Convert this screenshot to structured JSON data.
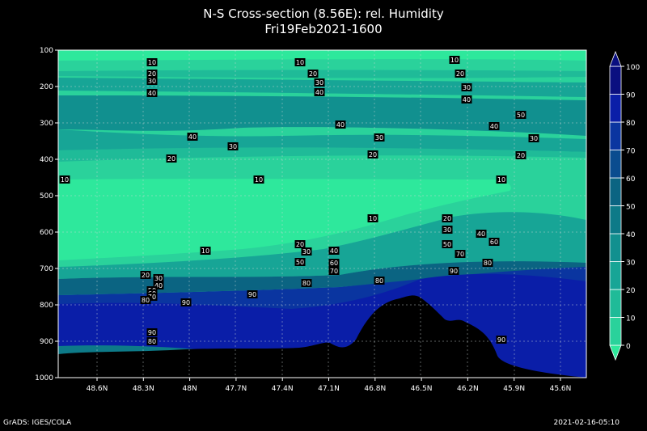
{
  "chart_data": {
    "type": "heatmap",
    "title": "N-S Cross-section (8.56E): rel. Humidity",
    "subtitle": "Fri19Feb2021-1600",
    "y_ticks": [
      "100",
      "200",
      "300",
      "400",
      "500",
      "600",
      "700",
      "800",
      "900",
      "1000"
    ],
    "x_ticks": [
      "48.6N",
      "48.3N",
      "48N",
      "47.7N",
      "47.4N",
      "47.1N",
      "46.8N",
      "46.5N",
      "46.2N",
      "45.9N",
      "45.6N"
    ],
    "colorbar": {
      "levels": [
        "0",
        "10",
        "20",
        "30",
        "40",
        "50",
        "60",
        "70",
        "80",
        "90",
        "100"
      ],
      "colors": [
        "#2ee89c",
        "#2ad29b",
        "#1fbb98",
        "#17a596",
        "#11908f",
        "#0d7a88",
        "#0b6482",
        "#0a4c8f",
        "#0a35a0",
        "#0a1ea8",
        "#0a0f80"
      ]
    },
    "contour_labels": [
      {
        "text": "10",
        "x": 188,
        "y": 77
      },
      {
        "text": "10",
        "x": 371,
        "y": 77
      },
      {
        "text": "10",
        "x": 562,
        "y": 74
      },
      {
        "text": "20",
        "x": 188,
        "y": 91
      },
      {
        "text": "20",
        "x": 387,
        "y": 91
      },
      {
        "text": "20",
        "x": 569,
        "y": 91
      },
      {
        "text": "30",
        "x": 188,
        "y": 100
      },
      {
        "text": "30",
        "x": 395,
        "y": 102
      },
      {
        "text": "30",
        "x": 577,
        "y": 108
      },
      {
        "text": "40",
        "x": 188,
        "y": 115
      },
      {
        "text": "40",
        "x": 395,
        "y": 114
      },
      {
        "text": "40",
        "x": 577,
        "y": 123
      },
      {
        "text": "50",
        "x": 644,
        "y": 142
      },
      {
        "text": "40",
        "x": 421,
        "y": 154
      },
      {
        "text": "40",
        "x": 611,
        "y": 156
      },
      {
        "text": "40",
        "x": 238,
        "y": 169
      },
      {
        "text": "30",
        "x": 469,
        "y": 170
      },
      {
        "text": "30",
        "x": 660,
        "y": 171
      },
      {
        "text": "30",
        "x": 288,
        "y": 181
      },
      {
        "text": "20",
        "x": 461,
        "y": 191
      },
      {
        "text": "20",
        "x": 644,
        "y": 192
      },
      {
        "text": "20",
        "x": 212,
        "y": 196
      },
      {
        "text": "10",
        "x": 80,
        "y": 222
      },
      {
        "text": "10",
        "x": 320,
        "y": 222
      },
      {
        "text": "10",
        "x": 620,
        "y": 222
      },
      {
        "text": "10",
        "x": 461,
        "y": 270
      },
      {
        "text": "20",
        "x": 553,
        "y": 270
      },
      {
        "text": "30",
        "x": 553,
        "y": 284
      },
      {
        "text": "40",
        "x": 595,
        "y": 289
      },
      {
        "text": "50",
        "x": 553,
        "y": 302
      },
      {
        "text": "60",
        "x": 611,
        "y": 299
      },
      {
        "text": "70",
        "x": 569,
        "y": 314
      },
      {
        "text": "80",
        "x": 603,
        "y": 325
      },
      {
        "text": "20",
        "x": 371,
        "y": 302
      },
      {
        "text": "30",
        "x": 379,
        "y": 311
      },
      {
        "text": "40",
        "x": 413,
        "y": 310
      },
      {
        "text": "10",
        "x": 254,
        "y": 310
      },
      {
        "text": "50",
        "x": 371,
        "y": 324
      },
      {
        "text": "60",
        "x": 413,
        "y": 325
      },
      {
        "text": "70",
        "x": 413,
        "y": 335
      },
      {
        "text": "80",
        "x": 379,
        "y": 350
      },
      {
        "text": "80",
        "x": 469,
        "y": 347
      },
      {
        "text": "90",
        "x": 561,
        "y": 335
      },
      {
        "text": "20",
        "x": 180,
        "y": 340
      },
      {
        "text": "30",
        "x": 196,
        "y": 344
      },
      {
        "text": "40",
        "x": 196,
        "y": 353
      },
      {
        "text": "50",
        "x": 188,
        "y": 359
      },
      {
        "text": "60",
        "x": 188,
        "y": 363
      },
      {
        "text": "70",
        "x": 188,
        "y": 367
      },
      {
        "text": "80",
        "x": 180,
        "y": 371
      },
      {
        "text": "90",
        "x": 312,
        "y": 364
      },
      {
        "text": "90",
        "x": 230,
        "y": 374
      },
      {
        "text": "90",
        "x": 188,
        "y": 411
      },
      {
        "text": "80",
        "x": 188,
        "y": 422
      },
      {
        "text": "90",
        "x": 620,
        "y": 420
      }
    ]
  },
  "footer": {
    "left": "GrADS: IGES/COLA",
    "right": "2021-02-16-05:10"
  }
}
